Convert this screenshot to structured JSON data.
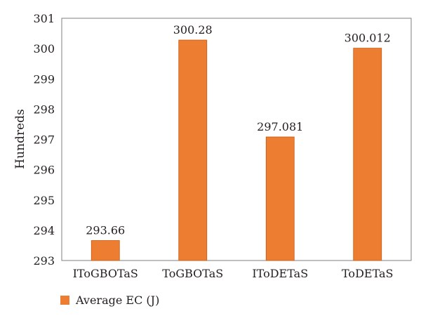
{
  "chart_data": {
    "type": "bar",
    "title": "",
    "xlabel": "",
    "ylabel": "Hundreds",
    "ylim": [
      293,
      301
    ],
    "yticks": [
      293,
      294,
      295,
      296,
      297,
      298,
      299,
      300,
      301
    ],
    "grid": false,
    "legend_position": "bottom-left",
    "categories": [
      "IToGBOTaS",
      "ToGBOTaS",
      "IToDETaS",
      "ToDETaS"
    ],
    "series": [
      {
        "name": "Average EC (J)",
        "color": "#ed7d31",
        "values": [
          293.66,
          300.28,
          297.081,
          300.012
        ],
        "labels": [
          "293.66",
          "300.28",
          "297.081",
          "300.012"
        ]
      }
    ]
  }
}
